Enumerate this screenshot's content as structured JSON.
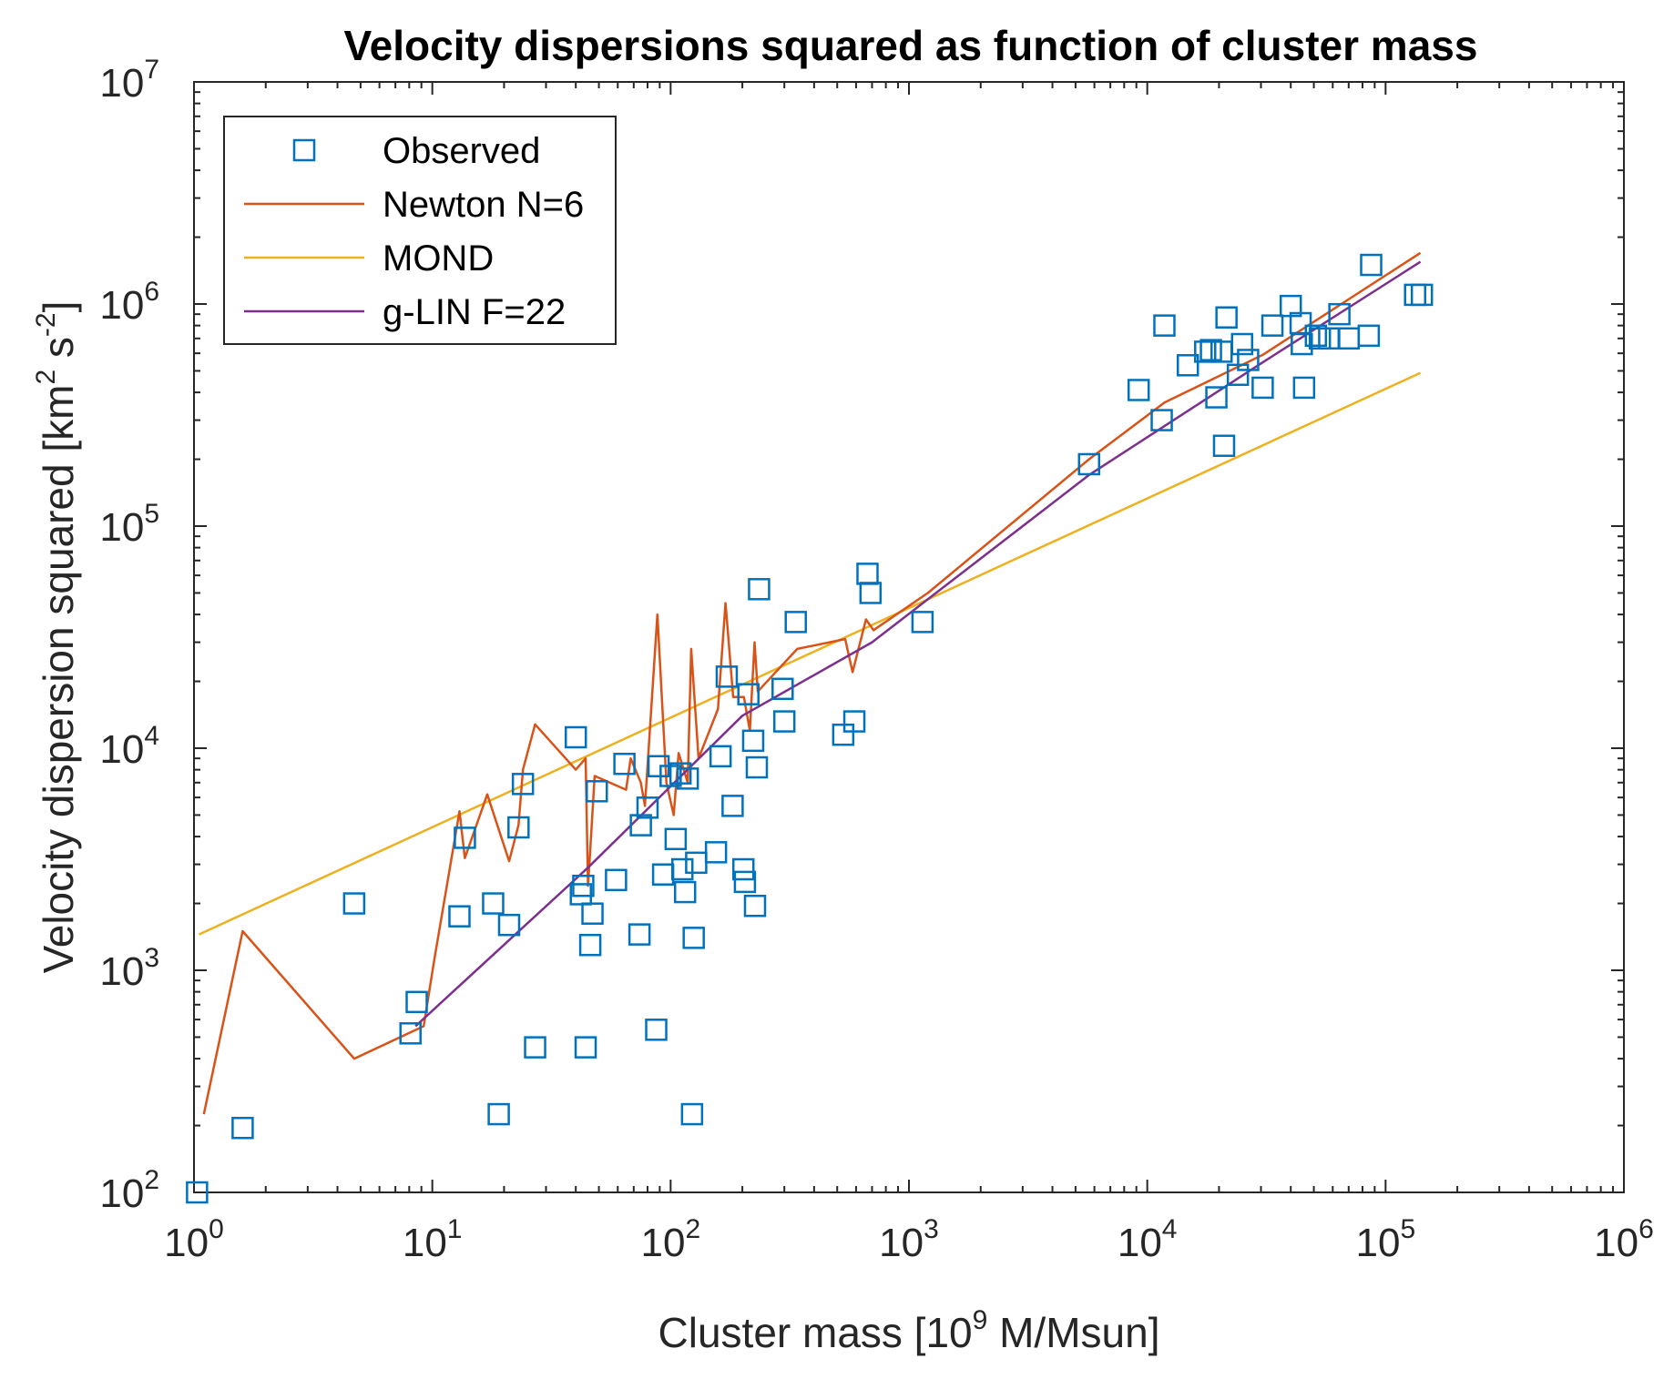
{
  "chart_data": {
    "type": "scatter",
    "title": "Velocity dispersions squared as function of cluster mass",
    "xlabel": {
      "main": "Cluster mass [10",
      "sup": "9",
      "rest": " M/Msun]"
    },
    "ylabel": {
      "main": "Velocity dispersion squared [km",
      "sup1": "2",
      "mid": " s",
      "sup2": "-2",
      "rest": "]"
    },
    "x_scale": "log",
    "y_scale": "log",
    "xlim": [
      1,
      1000000
    ],
    "ylim": [
      100,
      10000000
    ],
    "x_ticks": [
      {
        "base": "10",
        "exp": "0",
        "value": 1
      },
      {
        "base": "10",
        "exp": "1",
        "value": 10
      },
      {
        "base": "10",
        "exp": "2",
        "value": 100
      },
      {
        "base": "10",
        "exp": "3",
        "value": 1000
      },
      {
        "base": "10",
        "exp": "4",
        "value": 10000
      },
      {
        "base": "10",
        "exp": "5",
        "value": 100000
      },
      {
        "base": "10",
        "exp": "6",
        "value": 1000000
      }
    ],
    "y_ticks": [
      {
        "base": "10",
        "exp": "2",
        "value": 100
      },
      {
        "base": "10",
        "exp": "3",
        "value": 1000
      },
      {
        "base": "10",
        "exp": "4",
        "value": 10000
      },
      {
        "base": "10",
        "exp": "5",
        "value": 100000
      },
      {
        "base": "10",
        "exp": "6",
        "value": 1000000
      },
      {
        "base": "10",
        "exp": "7",
        "value": 10000000
      }
    ],
    "grid": false,
    "legend_position": "top-left",
    "series": [
      {
        "name": "Observed",
        "type": "scatter",
        "marker": "square",
        "color": "#0072BD",
        "points": [
          [
            1.03,
            100
          ],
          [
            1.6,
            195
          ],
          [
            4.7,
            2000
          ],
          [
            8.1,
            520
          ],
          [
            8.6,
            720
          ],
          [
            13,
            1750
          ],
          [
            13.7,
            3950
          ],
          [
            18,
            2000
          ],
          [
            19,
            225
          ],
          [
            21,
            1600
          ],
          [
            23,
            4400
          ],
          [
            24,
            6900
          ],
          [
            27,
            450
          ],
          [
            40,
            11200
          ],
          [
            42,
            2200
          ],
          [
            43,
            2400
          ],
          [
            44,
            450
          ],
          [
            46,
            1300
          ],
          [
            47,
            1800
          ],
          [
            49,
            6400
          ],
          [
            59,
            2550
          ],
          [
            64,
            8500
          ],
          [
            74,
            1450
          ],
          [
            75,
            4500
          ],
          [
            80,
            5400
          ],
          [
            87,
            540
          ],
          [
            89,
            8300
          ],
          [
            93,
            2700
          ],
          [
            100,
            7500
          ],
          [
            105,
            3900
          ],
          [
            110,
            7700
          ],
          [
            112,
            2850
          ],
          [
            115,
            2250
          ],
          [
            118,
            7300
          ],
          [
            123,
            225
          ],
          [
            125,
            1400
          ],
          [
            128,
            3050
          ],
          [
            155,
            3400
          ],
          [
            162,
            9200
          ],
          [
            172,
            21000
          ],
          [
            182,
            5500
          ],
          [
            202,
            2850
          ],
          [
            205,
            2500
          ],
          [
            212,
            17500
          ],
          [
            222,
            10800
          ],
          [
            226,
            1950
          ],
          [
            230,
            8200
          ],
          [
            235,
            52000
          ],
          [
            295,
            18500
          ],
          [
            300,
            13200
          ],
          [
            335,
            37000
          ],
          [
            530,
            11500
          ],
          [
            590,
            13200
          ],
          [
            670,
            61000
          ],
          [
            690,
            50000
          ],
          [
            1140,
            37000
          ],
          [
            5700,
            190000
          ],
          [
            9200,
            410000
          ],
          [
            11500,
            300000
          ],
          [
            11800,
            800000
          ],
          [
            14800,
            530000
          ],
          [
            17500,
            610000
          ],
          [
            18500,
            620000
          ],
          [
            19500,
            380000
          ],
          [
            20500,
            610000
          ],
          [
            21000,
            230000
          ],
          [
            21500,
            870000
          ],
          [
            24000,
            480000
          ],
          [
            25000,
            660000
          ],
          [
            26500,
            560000
          ],
          [
            30500,
            420000
          ],
          [
            33500,
            800000
          ],
          [
            40000,
            980000
          ],
          [
            44000,
            820000
          ],
          [
            45500,
            420000
          ],
          [
            44500,
            660000
          ],
          [
            51000,
            720000
          ],
          [
            53000,
            700000
          ],
          [
            58000,
            700000
          ],
          [
            64000,
            900000
          ],
          [
            70000,
            700000
          ],
          [
            85000,
            720000
          ],
          [
            87000,
            1500000
          ],
          [
            133000,
            1100000
          ],
          [
            142000,
            1100000
          ]
        ]
      },
      {
        "name": "Newton N=6",
        "type": "line",
        "color": "#D95319",
        "points": [
          [
            1.1,
            225
          ],
          [
            1.6,
            1500
          ],
          [
            4.7,
            400
          ],
          [
            9.2,
            560
          ],
          [
            10.2,
            1120
          ],
          [
            13,
            5200
          ],
          [
            13.7,
            3200
          ],
          [
            17,
            6200
          ],
          [
            21,
            3100
          ],
          [
            23,
            4500
          ],
          [
            24,
            8000
          ],
          [
            27,
            12800
          ],
          [
            40,
            8000
          ],
          [
            44,
            9000
          ],
          [
            45,
            2400
          ],
          [
            46,
            3500
          ],
          [
            48,
            7500
          ],
          [
            65,
            6500
          ],
          [
            68,
            9000
          ],
          [
            75,
            7000
          ],
          [
            78,
            5500
          ],
          [
            88,
            40000
          ],
          [
            96,
            7000
          ],
          [
            103,
            5000
          ],
          [
            108,
            9500
          ],
          [
            118,
            7000
          ],
          [
            122,
            28000
          ],
          [
            131,
            9000
          ],
          [
            158,
            15000
          ],
          [
            170,
            45000
          ],
          [
            183,
            17000
          ],
          [
            203,
            17000
          ],
          [
            215,
            12000
          ],
          [
            225,
            30000
          ],
          [
            232,
            18000
          ],
          [
            340,
            28000
          ],
          [
            540,
            31000
          ],
          [
            580,
            22000
          ],
          [
            660,
            38000
          ],
          [
            710,
            34000
          ],
          [
            1200,
            50000
          ],
          [
            5700,
            200000
          ],
          [
            11800,
            360000
          ],
          [
            30500,
            590000
          ],
          [
            140000,
            1700000
          ]
        ]
      },
      {
        "name": "MOND",
        "type": "line",
        "color": "#EDB120",
        "points": [
          [
            1.05,
            1450
          ],
          [
            140000,
            490000
          ]
        ]
      },
      {
        "name": "g-LIN F=22",
        "type": "line",
        "color": "#7E2F8E",
        "points": [
          [
            8.5,
            560
          ],
          [
            45,
            2900
          ],
          [
            200,
            14000
          ],
          [
            700,
            30000
          ],
          [
            5700,
            170000
          ],
          [
            30000,
            540000
          ],
          [
            140000,
            1550000
          ]
        ]
      }
    ]
  }
}
